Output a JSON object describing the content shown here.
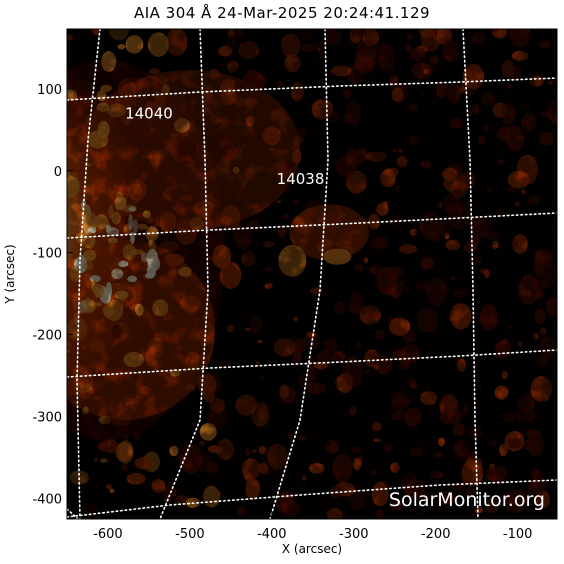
{
  "title": "AIA 304 Å 24-Mar-2025 20:24:41.129",
  "xlabel": "X (arcsec)",
  "ylabel": "Y (arcsec)",
  "x_ticks": [
    "-600",
    "-500",
    "-400",
    "-300",
    "-200",
    "-100"
  ],
  "y_ticks": [
    "100",
    "0",
    "-100",
    "-200",
    "-300",
    "-400"
  ],
  "active_regions": [
    {
      "number": "14040",
      "x": -550,
      "y": 70
    },
    {
      "number": "14038",
      "x": -365,
      "y": -10
    }
  ],
  "watermark": "SolarMonitor.org",
  "colors": {
    "background": "#050000",
    "emission_dark": "#5a0e00",
    "emission_mid": "#c23a00",
    "emission_bright": "#ff9a2a",
    "emission_peak": "#fff3d0",
    "grid": "#ffffff"
  }
}
